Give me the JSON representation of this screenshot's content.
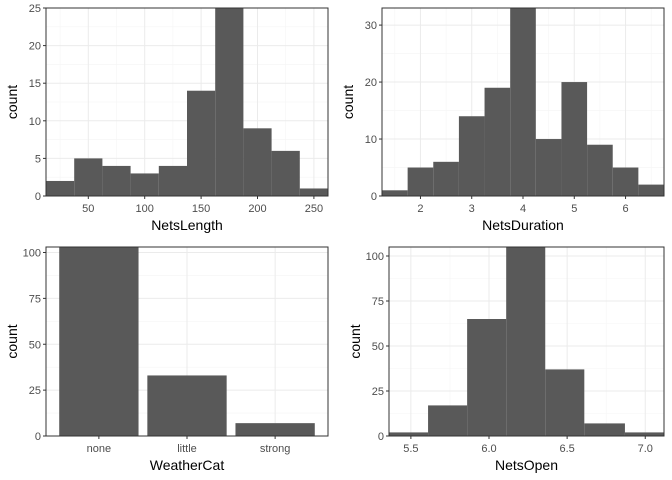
{
  "colors": {
    "bar": "#595959",
    "panel_border": "#333333",
    "grid": "#ebebeb"
  },
  "chart_data": [
    {
      "type": "bar",
      "variant": "histogram",
      "xlabel": "NetsLength",
      "ylabel": "count",
      "xlim": [
        12.5,
        262.5
      ],
      "ylim": [
        0,
        25
      ],
      "xticks": [
        50,
        100,
        150,
        200,
        250
      ],
      "yticks": [
        0,
        5,
        10,
        15,
        20,
        25
      ],
      "grid": true,
      "bins": [
        {
          "x0": 12.5,
          "x1": 37.5,
          "count": 2
        },
        {
          "x0": 37.5,
          "x1": 62.5,
          "count": 5
        },
        {
          "x0": 62.5,
          "x1": 87.5,
          "count": 4
        },
        {
          "x0": 87.5,
          "x1": 112.5,
          "count": 3
        },
        {
          "x0": 112.5,
          "x1": 137.5,
          "count": 4
        },
        {
          "x0": 137.5,
          "x1": 162.5,
          "count": 14
        },
        {
          "x0": 162.5,
          "x1": 187.5,
          "count": 25
        },
        {
          "x0": 187.5,
          "x1": 212.5,
          "count": 9
        },
        {
          "x0": 212.5,
          "x1": 237.5,
          "count": 6
        },
        {
          "x0": 237.5,
          "x1": 262.5,
          "count": 1
        }
      ]
    },
    {
      "type": "bar",
      "variant": "histogram",
      "xlabel": "NetsDuration",
      "ylabel": "count",
      "xlim": [
        1.25,
        6.75
      ],
      "ylim": [
        0,
        33
      ],
      "xticks": [
        2,
        3,
        4,
        5,
        6
      ],
      "yticks": [
        0,
        10,
        20,
        30
      ],
      "grid": true,
      "bins": [
        {
          "x0": 1.25,
          "x1": 1.75,
          "count": 1
        },
        {
          "x0": 1.75,
          "x1": 2.25,
          "count": 5
        },
        {
          "x0": 2.25,
          "x1": 2.75,
          "count": 6
        },
        {
          "x0": 2.75,
          "x1": 3.25,
          "count": 14
        },
        {
          "x0": 3.25,
          "x1": 3.75,
          "count": 19
        },
        {
          "x0": 3.75,
          "x1": 4.25,
          "count": 33
        },
        {
          "x0": 4.25,
          "x1": 4.75,
          "count": 10
        },
        {
          "x0": 4.75,
          "x1": 5.25,
          "count": 20
        },
        {
          "x0": 5.25,
          "x1": 5.75,
          "count": 9
        },
        {
          "x0": 5.75,
          "x1": 6.25,
          "count": 5
        },
        {
          "x0": 6.25,
          "x1": 6.75,
          "count": 2
        }
      ]
    },
    {
      "type": "bar",
      "xlabel": "WeatherCat",
      "ylabel": "count",
      "categories": [
        "none",
        "little",
        "strong"
      ],
      "values": [
        103,
        33,
        7
      ],
      "ylim": [
        0,
        103
      ],
      "yticks": [
        0,
        25,
        50,
        75,
        100
      ],
      "grid": true
    },
    {
      "type": "bar",
      "variant": "histogram",
      "xlabel": "NetsOpen",
      "ylabel": "count",
      "xlim": [
        5.36,
        7.12
      ],
      "ylim": [
        0,
        105
      ],
      "xticks": [
        5.5,
        6.0,
        6.5,
        7.0
      ],
      "xtick_labels": [
        "5.5",
        "6.0",
        "6.5",
        "7.0"
      ],
      "yticks": [
        0,
        25,
        50,
        75,
        100
      ],
      "grid": true,
      "bins": [
        {
          "x0": 5.36,
          "x1": 5.61,
          "count": 2
        },
        {
          "x0": 5.61,
          "x1": 5.86,
          "count": 17
        },
        {
          "x0": 5.86,
          "x1": 6.11,
          "count": 65
        },
        {
          "x0": 6.11,
          "x1": 6.36,
          "count": 105
        },
        {
          "x0": 6.36,
          "x1": 6.61,
          "count": 37
        },
        {
          "x0": 6.61,
          "x1": 6.87,
          "count": 7
        },
        {
          "x0": 6.87,
          "x1": 7.12,
          "count": 2
        }
      ]
    }
  ]
}
